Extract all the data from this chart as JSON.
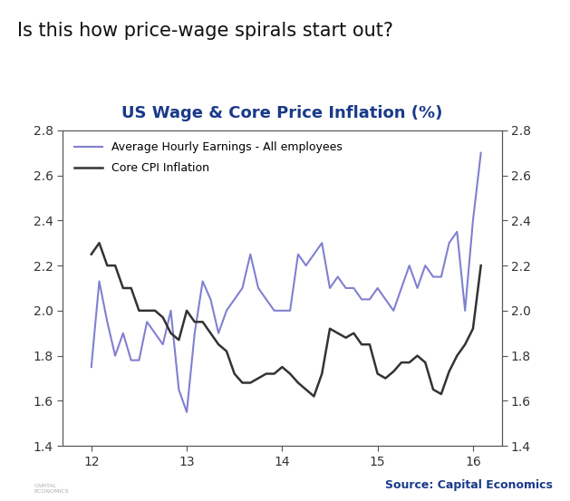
{
  "title": "US Wage & Core Price Inflation (%)",
  "title_color": "#1a3a8a",
  "header_text": "Is this how price-wage spirals start out?",
  "source_text": "Source: Capital Economics",
  "source_color": "#1a3a8a",
  "legend_label_wages": "Average Hourly Earnings - All employees",
  "legend_label_cpi": "Core CPI Inflation",
  "wages_color": "#8080d0",
  "cpi_color": "#333333",
  "ylim": [
    1.4,
    2.8
  ],
  "yticks": [
    1.4,
    1.6,
    1.8,
    2.0,
    2.2,
    2.4,
    2.6,
    2.8
  ],
  "xlim": [
    11.7,
    16.3
  ],
  "xticks": [
    12,
    13,
    14,
    15,
    16
  ],
  "wages_x": [
    12.0,
    12.083,
    12.167,
    12.25,
    12.333,
    12.417,
    12.5,
    12.583,
    12.667,
    12.75,
    12.833,
    12.917,
    13.0,
    13.083,
    13.167,
    13.25,
    13.333,
    13.417,
    13.5,
    13.583,
    13.667,
    13.75,
    13.833,
    13.917,
    14.0,
    14.083,
    14.167,
    14.25,
    14.333,
    14.417,
    14.5,
    14.583,
    14.667,
    14.75,
    14.833,
    14.917,
    15.0,
    15.083,
    15.167,
    15.25,
    15.333,
    15.417,
    15.5,
    15.583,
    15.667,
    15.75,
    15.833,
    15.917,
    16.0,
    16.083
  ],
  "wages_y": [
    1.75,
    2.13,
    1.95,
    1.8,
    1.9,
    1.78,
    1.78,
    1.95,
    1.9,
    1.85,
    2.0,
    1.65,
    1.55,
    1.9,
    2.13,
    2.05,
    1.9,
    2.0,
    2.05,
    2.1,
    2.25,
    2.1,
    2.05,
    2.0,
    2.0,
    2.0,
    2.25,
    2.2,
    2.25,
    2.3,
    2.1,
    2.15,
    2.1,
    2.1,
    2.05,
    2.05,
    2.1,
    2.05,
    2.0,
    2.1,
    2.2,
    2.1,
    2.2,
    2.15,
    2.15,
    2.3,
    2.35,
    2.0,
    2.4,
    2.7
  ],
  "cpi_x": [
    12.0,
    12.083,
    12.167,
    12.25,
    12.333,
    12.417,
    12.5,
    12.583,
    12.667,
    12.75,
    12.833,
    12.917,
    13.0,
    13.083,
    13.167,
    13.25,
    13.333,
    13.417,
    13.5,
    13.583,
    13.667,
    13.75,
    13.833,
    13.917,
    14.0,
    14.083,
    14.167,
    14.25,
    14.333,
    14.417,
    14.5,
    14.583,
    14.667,
    14.75,
    14.833,
    14.917,
    15.0,
    15.083,
    15.167,
    15.25,
    15.333,
    15.417,
    15.5,
    15.583,
    15.667,
    15.75,
    15.833,
    15.917,
    16.0,
    16.083
  ],
  "cpi_y": [
    2.25,
    2.3,
    2.2,
    2.2,
    2.1,
    2.1,
    2.0,
    2.0,
    2.0,
    1.97,
    1.9,
    1.87,
    2.0,
    1.95,
    1.95,
    1.9,
    1.85,
    1.82,
    1.72,
    1.68,
    1.68,
    1.7,
    1.72,
    1.72,
    1.75,
    1.72,
    1.68,
    1.65,
    1.62,
    1.72,
    1.92,
    1.9,
    1.88,
    1.9,
    1.85,
    1.85,
    1.72,
    1.7,
    1.73,
    1.77,
    1.77,
    1.8,
    1.77,
    1.65,
    1.63,
    1.73,
    1.8,
    1.85,
    1.92,
    2.2
  ],
  "bg_color": "#ffffff",
  "plot_bg_color": "#ffffff",
  "spine_color": "#555555",
  "tick_color": "#333333",
  "linewidth_wages": 1.5,
  "linewidth_cpi": 1.8
}
